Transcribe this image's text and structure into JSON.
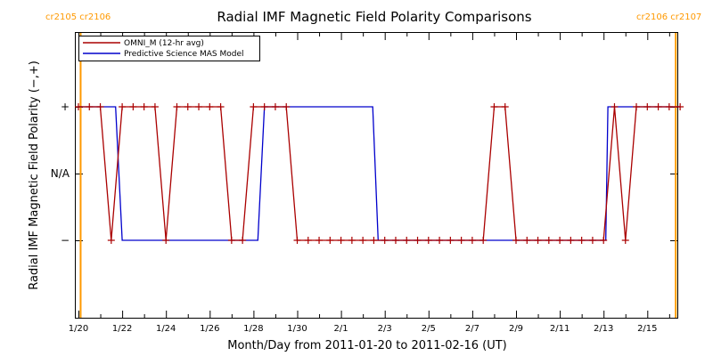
{
  "chart_data": {
    "type": "line",
    "title": "Radial IMF Magnetic Field Polarity Comparisons",
    "xlabel": "Month/Day from 2011-01-20 to 2011-02-16 (UT)",
    "ylabel": "Radial IMF Magnetic Field Polarity (−,+)",
    "x_unit": "days since 2011-01-20 00:00 UT",
    "xlim": [
      0,
      27.5
    ],
    "ylim": [
      -2,
      2
    ],
    "x_tick_values": [
      0,
      2,
      4,
      6,
      8,
      10,
      12,
      14,
      16,
      18,
      20,
      22,
      24,
      26
    ],
    "x_tick_labels": [
      "1/20",
      "1/22",
      "1/24",
      "1/26",
      "1/28",
      "1/30",
      "2/1",
      "2/3",
      "2/5",
      "2/7",
      "2/9",
      "2/11",
      "2/13",
      "2/15"
    ],
    "y_tick_values": [
      1,
      0,
      -1
    ],
    "y_tick_labels": [
      "+",
      "N/A",
      "−"
    ],
    "carrington_markers": [
      {
        "x": 0.1,
        "label": "cr2105 cr2106",
        "side": "left"
      },
      {
        "x": 27.3,
        "label": "cr2106 cr2107",
        "side": "right"
      }
    ],
    "legend": {
      "position": "top-left",
      "entries": [
        "OMNI_M (12-hr avg)",
        "Predictive Science MAS Model"
      ]
    },
    "series": [
      {
        "name": "OMNI_M (12-hr avg)",
        "color": "#aa0000",
        "marker": "plus",
        "x": [
          0.0,
          0.5,
          1.0,
          1.5,
          2.0,
          2.5,
          3.0,
          3.5,
          4.0,
          4.5,
          5.0,
          5.5,
          6.0,
          6.5,
          7.0,
          7.5,
          8.0,
          8.5,
          9.0,
          9.5,
          10.0,
          10.5,
          11.0,
          11.5,
          12.0,
          12.5,
          13.0,
          13.5,
          14.0,
          14.5,
          15.0,
          15.5,
          16.0,
          16.5,
          17.0,
          17.5,
          18.0,
          18.5,
          19.0,
          19.5,
          20.0,
          20.5,
          21.0,
          21.5,
          22.0,
          22.5,
          23.0,
          23.5,
          24.0,
          24.5,
          25.0,
          25.5,
          26.0,
          26.5,
          27.0,
          27.5
        ],
        "y": [
          1,
          1,
          1,
          -1,
          1,
          1,
          1,
          1,
          -1,
          1,
          1,
          1,
          1,
          1,
          -1,
          -1,
          1,
          1,
          1,
          1,
          -1,
          -1,
          -1,
          -1,
          -1,
          -1,
          -1,
          -1,
          -1,
          -1,
          -1,
          -1,
          -1,
          -1,
          -1,
          -1,
          -1,
          -1,
          1,
          1,
          -1,
          -1,
          -1,
          -1,
          -1,
          -1,
          -1,
          -1,
          -1,
          1,
          -1,
          1,
          1,
          1,
          1,
          1
        ]
      },
      {
        "name": "Predictive Science MAS Model",
        "color": "#0000cc",
        "marker": "none",
        "x": [
          0.0,
          1.7,
          2.0,
          8.2,
          8.5,
          13.45,
          13.7,
          24.1,
          24.2,
          27.5
        ],
        "y": [
          1,
          1,
          -1,
          -1,
          1,
          1,
          -1,
          -1,
          1,
          1
        ]
      }
    ]
  }
}
